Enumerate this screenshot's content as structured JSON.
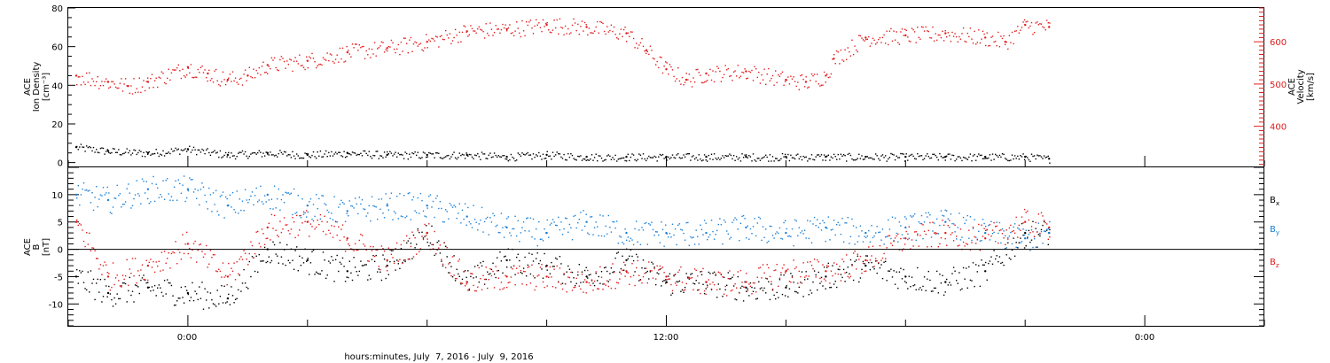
{
  "figure": {
    "xlabel": "hours:minutes, July  7, 2016 - July  9, 2016",
    "xticks": [
      "0:00",
      "12:00",
      "0:00"
    ]
  },
  "panels": {
    "top": {
      "left_label": [
        "ACE",
        "Ion Density",
        "[cm⁻³]"
      ],
      "right_label": [
        "ACE",
        "Velocity",
        "[km/s]"
      ]
    },
    "bottom": {
      "left_label": [
        "ACE",
        "B",
        "[nT]"
      ],
      "legend": [
        {
          "main": "B",
          "sub": "x",
          "color": "#000000"
        },
        {
          "main": "B",
          "sub": "y",
          "color": "#1a7fd6"
        },
        {
          "main": "B",
          "sub": "z",
          "color": "#e11b1b"
        }
      ]
    }
  },
  "chart_data": [
    {
      "type": "scatter",
      "title": "",
      "xlabel": "hours:minutes, July  7, 2016 - July  9, 2016",
      "x_unit": "hours since 2016-07-07 0:00",
      "xlim": [
        -3,
        27
      ],
      "xticks": [
        {
          "value": 0,
          "label": "0:00"
        },
        {
          "value": 12,
          "label": "12:00"
        },
        {
          "value": 24,
          "label": "0:00"
        }
      ],
      "ylabel": "ACE Ion Density [cm⁻³]",
      "ylim": [
        -2,
        80
      ],
      "yticks": [
        0,
        20,
        40,
        60,
        80
      ],
      "y2label": "ACE Velocity [km/s]",
      "y2lim": [
        305,
        680
      ],
      "y2ticks": [
        400,
        500,
        600
      ],
      "series": [
        {
          "color": "#000000",
          "axis": "left",
          "x": [
            -2.8,
            -2.0,
            -1.0,
            0.0,
            1.0,
            2.0,
            3.0,
            4.0,
            5.0,
            6.0,
            7.0,
            8.0,
            9.0,
            10.0,
            11.0,
            12.0,
            13.0,
            14.0,
            15.0,
            16.0,
            17.0,
            18.0,
            19.0,
            20.0,
            21.0,
            21.6
          ],
          "values": [
            8,
            6,
            5,
            7,
            4,
            5,
            4,
            5,
            4,
            4,
            4,
            3,
            4,
            3,
            3,
            3,
            3,
            3,
            3,
            3,
            3,
            3,
            3,
            3,
            3,
            2
          ]
        },
        {
          "color": "#e11b1b",
          "axis": "right",
          "x": [
            -2.8,
            -2.0,
            -1.5,
            -1.0,
            0.0,
            0.5,
            1.0,
            1.5,
            2.0,
            3.0,
            4.0,
            5.0,
            6.0,
            7.0,
            8.0,
            9.0,
            10.0,
            11.0,
            11.5,
            12.0,
            12.5,
            13.0,
            14.0,
            15.0,
            15.5,
            16.0,
            16.2,
            17.0,
            18.0,
            19.0,
            20.0,
            20.5,
            21.0,
            21.6
          ],
          "values": [
            520,
            505,
            495,
            505,
            540,
            525,
            510,
            520,
            545,
            555,
            575,
            585,
            600,
            625,
            630,
            640,
            635,
            620,
            580,
            535,
            510,
            525,
            530,
            510,
            505,
            520,
            560,
            610,
            615,
            620,
            610,
            600,
            640,
            635
          ]
        }
      ]
    },
    {
      "type": "scatter",
      "title": "",
      "xlabel": "hours:minutes, July  7, 2016 - July  9, 2016",
      "x_unit": "hours since 2016-07-07 0:00",
      "xlim": [
        -3,
        27
      ],
      "ylabel": "ACE B [nT]",
      "ylim": [
        -14,
        15
      ],
      "yticks": [
        -10,
        -5,
        0,
        5,
        10
      ],
      "zero_line": true,
      "series": [
        {
          "name": "Bx",
          "color": "#000000",
          "x": [
            -2.8,
            -2.0,
            -1.0,
            0.0,
            1.0,
            2.0,
            3.0,
            4.0,
            5.0,
            6.0,
            7.0,
            8.0,
            9.0,
            10.0,
            11.0,
            12.0,
            13.0,
            14.0,
            15.0,
            16.0,
            17.0,
            18.0,
            19.0,
            20.0,
            21.0,
            21.6
          ],
          "values": [
            -5,
            -8,
            -7,
            -8,
            -9,
            0,
            -2,
            -4,
            -3,
            3,
            -6,
            -2,
            -3,
            -5,
            -2,
            -6,
            -6,
            -7,
            -7,
            -5,
            -3,
            -5,
            -6,
            -4,
            3,
            3
          ]
        },
        {
          "name": "By",
          "color": "#1a7fd6",
          "x": [
            -2.8,
            -2.0,
            -1.0,
            0.0,
            1.0,
            2.0,
            3.0,
            4.0,
            5.0,
            6.0,
            7.0,
            8.0,
            9.0,
            10.0,
            11.0,
            12.0,
            13.0,
            14.0,
            15.0,
            16.0,
            17.0,
            18.0,
            19.0,
            20.0,
            21.0,
            21.6
          ],
          "values": [
            10,
            9,
            11,
            11,
            8,
            10,
            8,
            7,
            8,
            8,
            6,
            4,
            3,
            5,
            3,
            3,
            3,
            4,
            3,
            4,
            3,
            4,
            5,
            3,
            2,
            3
          ]
        },
        {
          "name": "Bz",
          "color": "#e11b1b",
          "x": [
            -2.8,
            -2.0,
            -1.0,
            0.0,
            1.0,
            2.0,
            3.0,
            4.0,
            5.0,
            6.0,
            7.0,
            8.0,
            9.0,
            10.0,
            11.0,
            12.0,
            13.0,
            14.0,
            15.0,
            16.0,
            17.0,
            18.0,
            19.0,
            20.0,
            21.0,
            21.6
          ],
          "values": [
            5,
            -5,
            -3,
            1,
            -5,
            4,
            5,
            2,
            -2,
            3,
            -6,
            -5,
            -5,
            -6,
            -4,
            -5,
            -6,
            -6,
            -4,
            -4,
            -2,
            2,
            3,
            2,
            5,
            4
          ]
        }
      ]
    }
  ]
}
